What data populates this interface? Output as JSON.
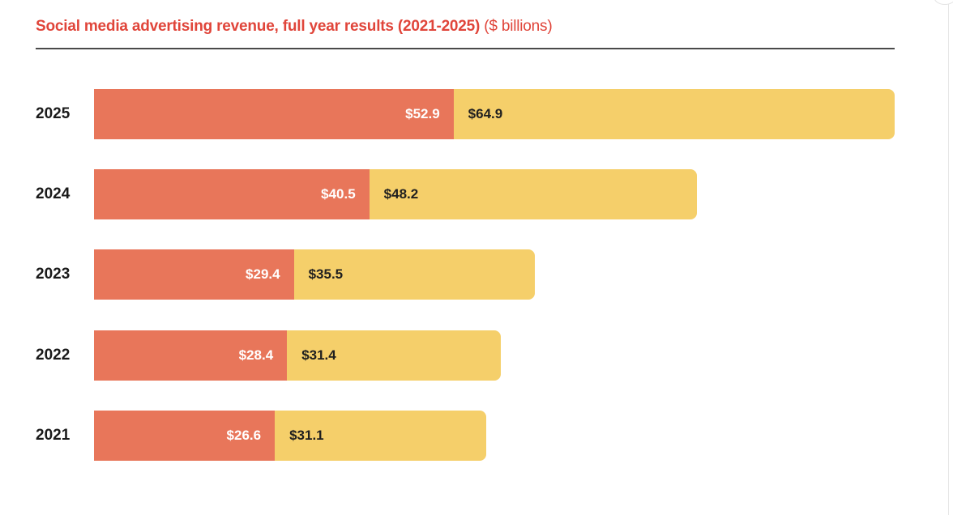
{
  "chart_data": {
    "type": "bar",
    "orientation": "horizontal",
    "stacked": true,
    "title": "Social media advertising revenue, full year results (2021-2025)",
    "title_unit": "($ billions)",
    "xlabel": "",
    "ylabel": "",
    "grid": false,
    "legend": "none",
    "categories": [
      "2025",
      "2024",
      "2023",
      "2022",
      "2021"
    ],
    "series": [
      {
        "name": "segment_1",
        "color": "#E8765A",
        "values": [
          52.9,
          40.5,
          29.4,
          28.4,
          26.6
        ],
        "labels": [
          "$52.9",
          "$40.5",
          "$29.4",
          "$28.4",
          "$26.6"
        ]
      },
      {
        "name": "segment_2",
        "color": "#F5CF6A",
        "values": [
          64.9,
          48.2,
          35.5,
          31.4,
          31.1
        ],
        "labels": [
          "$64.9",
          "$48.2",
          "$35.5",
          "$31.4",
          "$31.1"
        ]
      }
    ],
    "xlim": [
      0,
      117.8
    ]
  },
  "colors": {
    "title": "#E0453A",
    "rule": "#4a4a4a"
  }
}
